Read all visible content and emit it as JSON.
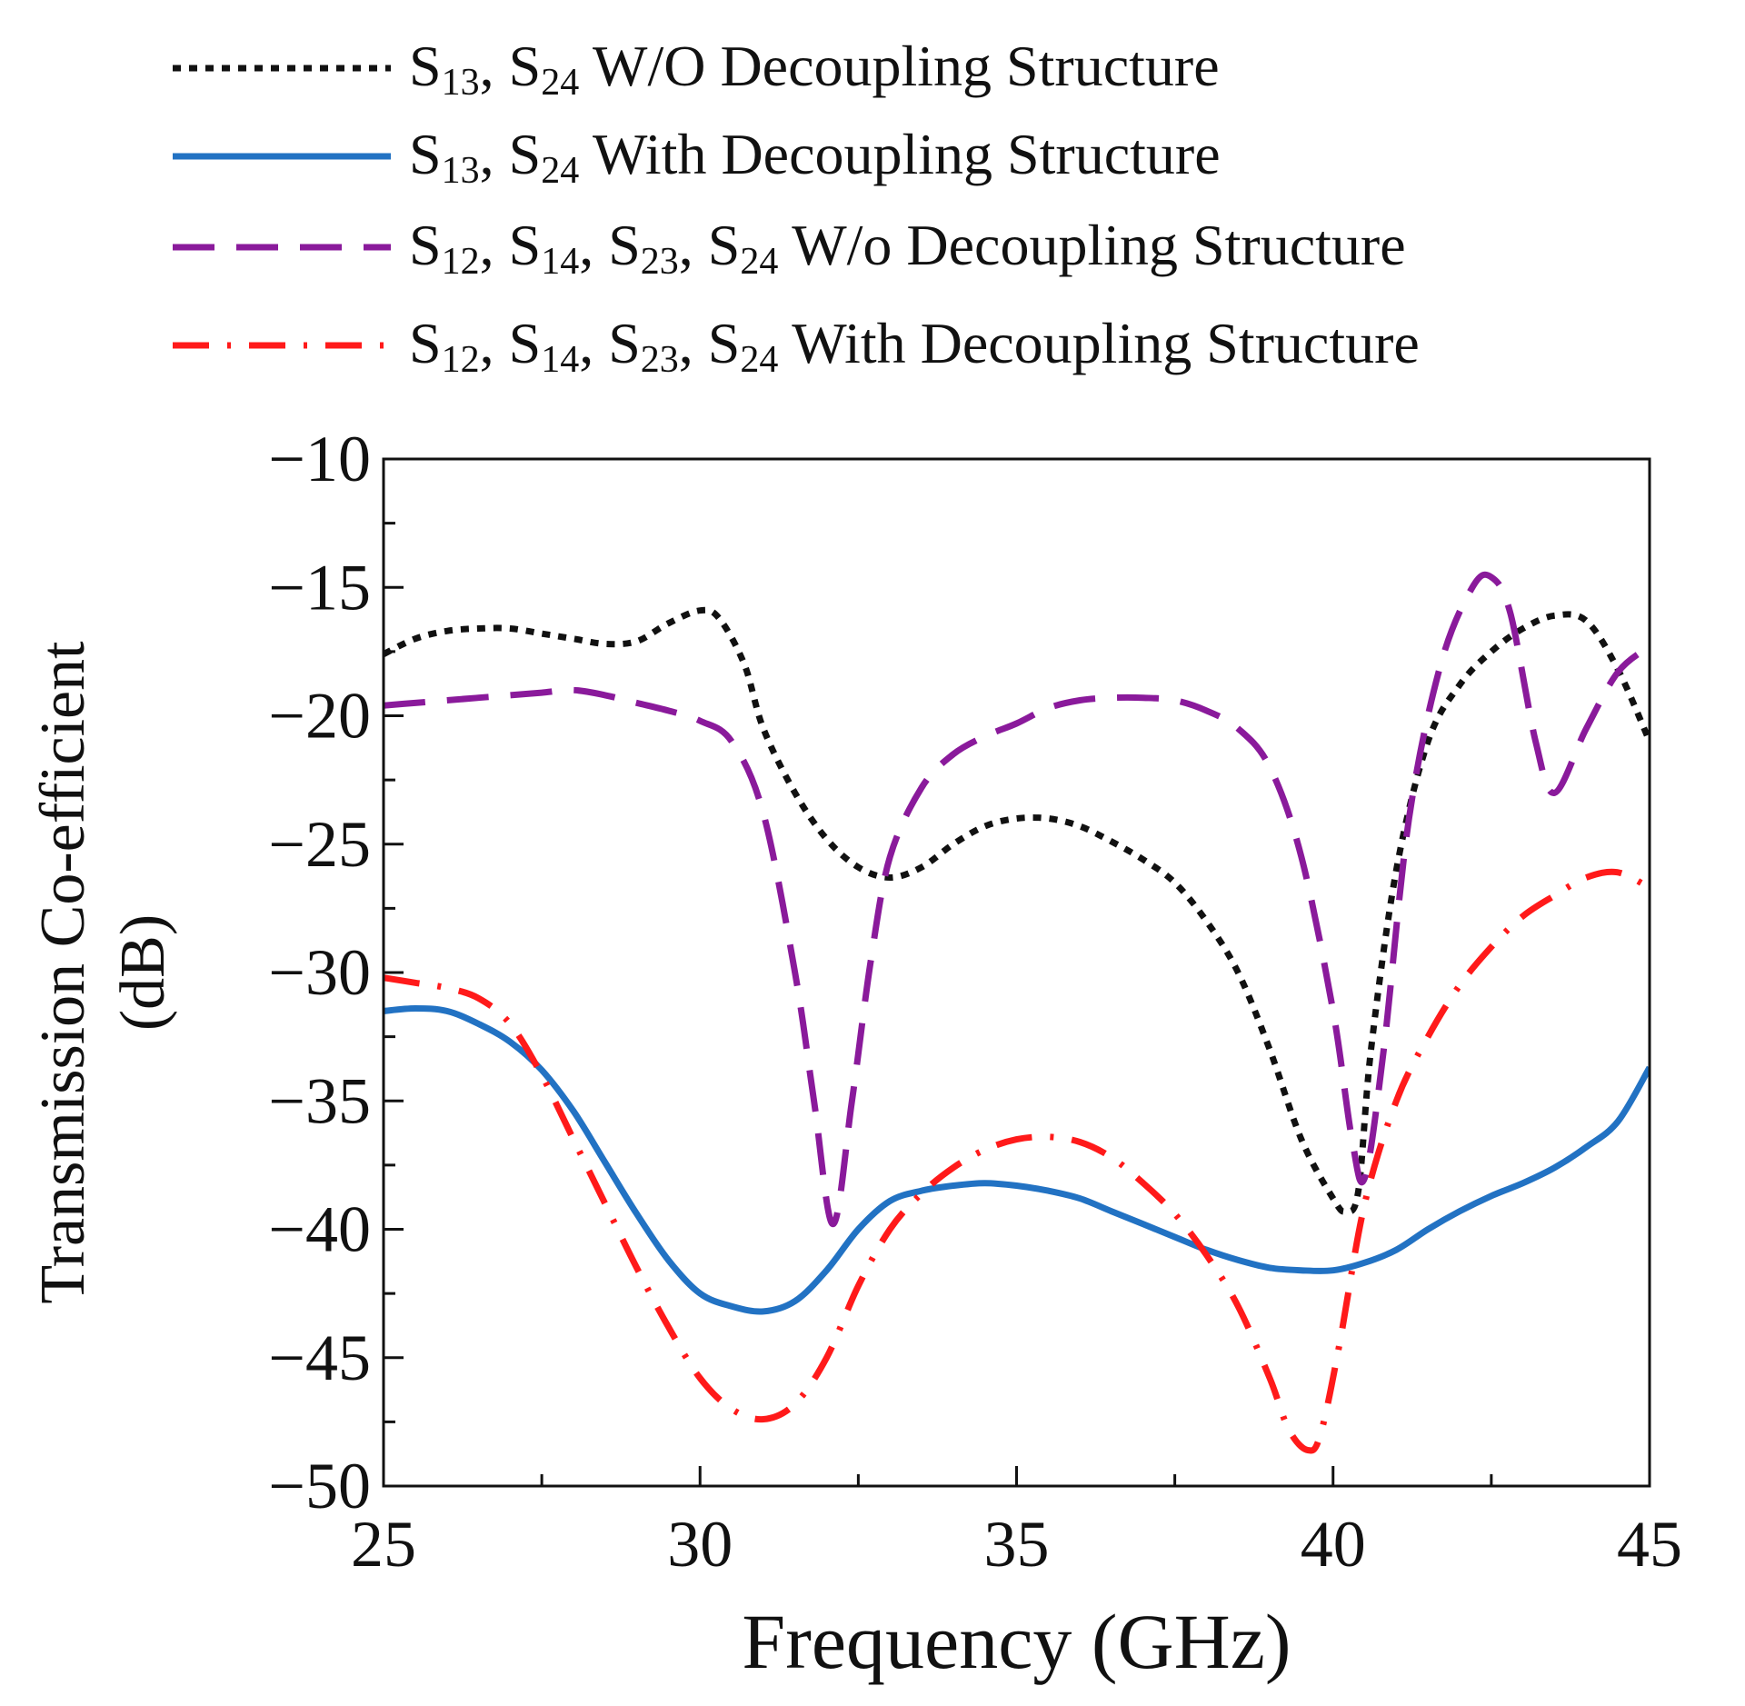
{
  "chart_data": {
    "type": "line",
    "title": "",
    "xlabel": "Frequency (GHz)",
    "ylabel": [
      "Transmission Co-efficient",
      "(dB)"
    ],
    "xlim": [
      25,
      45
    ],
    "ylim": [
      -50,
      -10
    ],
    "xticks": [
      "25",
      "30",
      "35",
      "40",
      "45"
    ],
    "yticks": [
      "−10",
      "−15",
      "−20",
      "−25",
      "−30",
      "−35",
      "−40",
      "−45",
      "−50"
    ],
    "legend_position": "top",
    "series": [
      {
        "name": "S13, S24 W/O Decoupling Structure",
        "legend_parts": [
          [
            "S",
            "13"
          ],
          [
            ", S",
            "24"
          ],
          [
            " W/O Decoupling Structure",
            ""
          ]
        ],
        "color": "#111111",
        "style": "dotted",
        "x": [
          25,
          25.5,
          26,
          26.5,
          27,
          27.5,
          28,
          28.5,
          29,
          29.5,
          30,
          30.3,
          30.7,
          31,
          31.5,
          32,
          32.5,
          33,
          33.5,
          34,
          34.5,
          35,
          35.5,
          36,
          36.5,
          37,
          37.5,
          38,
          38.5,
          39,
          39.5,
          40,
          40.2,
          40.4,
          40.6,
          41,
          41.5,
          42,
          42.5,
          43,
          43.5,
          44,
          44.5,
          45
        ],
        "y": [
          -17.6,
          -17.0,
          -16.7,
          -16.6,
          -16.6,
          -16.8,
          -17.0,
          -17.2,
          -17.1,
          -16.4,
          -15.9,
          -16.2,
          -18.0,
          -20.5,
          -23.0,
          -24.8,
          -25.9,
          -26.3,
          -25.9,
          -25.0,
          -24.3,
          -24.0,
          -24.0,
          -24.3,
          -24.9,
          -25.6,
          -26.5,
          -28.0,
          -30.0,
          -33.0,
          -36.5,
          -38.8,
          -39.3,
          -38.5,
          -33.0,
          -26.0,
          -21.0,
          -18.8,
          -17.5,
          -16.6,
          -16.1,
          -16.3,
          -18.2,
          -21.0
        ]
      },
      {
        "name": "S13, S24 With Decoupling Structure",
        "legend_parts": [
          [
            "S",
            "13"
          ],
          [
            ", S",
            "24"
          ],
          [
            " With Decoupling Structure",
            ""
          ]
        ],
        "color": "#2272c3",
        "style": "solid",
        "x": [
          25,
          25.5,
          26,
          26.5,
          27,
          27.5,
          28,
          28.5,
          29,
          29.5,
          30,
          30.5,
          31,
          31.5,
          32,
          32.5,
          33,
          33.5,
          34,
          34.5,
          35,
          35.5,
          36,
          36.5,
          37,
          37.5,
          38,
          38.5,
          39,
          39.5,
          40,
          40.5,
          41,
          41.5,
          42,
          42.5,
          43,
          43.5,
          44,
          44.5,
          45
        ],
        "y": [
          -31.5,
          -31.4,
          -31.5,
          -32.0,
          -32.7,
          -33.8,
          -35.4,
          -37.4,
          -39.4,
          -41.2,
          -42.5,
          -43.0,
          -43.2,
          -42.8,
          -41.6,
          -40.0,
          -38.9,
          -38.5,
          -38.3,
          -38.2,
          -38.3,
          -38.5,
          -38.8,
          -39.3,
          -39.8,
          -40.3,
          -40.8,
          -41.2,
          -41.5,
          -41.6,
          -41.6,
          -41.3,
          -40.8,
          -40.0,
          -39.3,
          -38.7,
          -38.2,
          -37.6,
          -36.8,
          -35.8,
          -33.7
        ]
      },
      {
        "name": "S12, S14, S23, S24 W/o Decoupling Structure",
        "legend_parts": [
          [
            "S",
            "12"
          ],
          [
            ", S",
            "14"
          ],
          [
            ", S",
            "23"
          ],
          [
            ", S",
            "24"
          ],
          [
            " W/o Decoupling Structure",
            ""
          ]
        ],
        "color": "#8a1a9b",
        "style": "longdash",
        "x": [
          25,
          25.5,
          26,
          26.5,
          27,
          27.5,
          28,
          28.5,
          29,
          29.5,
          30,
          30.5,
          31,
          31.5,
          31.8,
          32.1,
          32.4,
          32.7,
          33,
          33.5,
          34,
          34.5,
          35,
          35.5,
          36,
          36.5,
          37,
          37.5,
          38,
          38.5,
          39,
          39.5,
          40,
          40.3,
          40.5,
          40.8,
          41.2,
          41.7,
          42.2,
          42.5,
          42.8,
          43.2,
          43.5,
          44,
          44.5,
          45
        ],
        "y": [
          -19.6,
          -19.5,
          -19.4,
          -19.3,
          -19.2,
          -19.1,
          -19.0,
          -19.2,
          -19.5,
          -19.8,
          -20.2,
          -21.0,
          -23.8,
          -30.0,
          -35.0,
          -39.8,
          -35.0,
          -29.5,
          -25.5,
          -22.8,
          -21.5,
          -20.8,
          -20.3,
          -19.7,
          -19.4,
          -19.3,
          -19.3,
          -19.4,
          -19.8,
          -20.5,
          -22.0,
          -25.5,
          -31.5,
          -36.5,
          -38.0,
          -33.0,
          -24.0,
          -18.0,
          -15.0,
          -14.6,
          -16.0,
          -21.0,
          -23.0,
          -20.5,
          -18.3,
          -17.3
        ]
      },
      {
        "name": "S12, S14, S23, S24 With Decoupling Structure",
        "legend_parts": [
          [
            "S",
            "12"
          ],
          [
            ", S",
            "14"
          ],
          [
            ", S",
            "23"
          ],
          [
            ", S",
            "24"
          ],
          [
            " With Decoupling Structure",
            ""
          ]
        ],
        "color": "#ff1a1a",
        "style": "dashdot",
        "x": [
          25,
          25.5,
          26,
          26.5,
          27,
          27.5,
          28,
          28.5,
          29,
          29.5,
          30,
          30.5,
          31,
          31.5,
          32,
          32.5,
          33,
          33.5,
          34,
          34.5,
          35,
          35.5,
          36,
          36.5,
          37,
          37.5,
          38,
          38.5,
          39,
          39.3,
          39.6,
          39.8,
          40.1,
          40.5,
          41,
          41.5,
          42,
          42.5,
          43,
          43.5,
          44,
          44.5,
          45
        ],
        "y": [
          -30.2,
          -30.4,
          -30.6,
          -31.0,
          -32.0,
          -34.0,
          -36.5,
          -39.0,
          -41.5,
          -43.8,
          -45.8,
          -47.0,
          -47.4,
          -46.8,
          -45.0,
          -42.2,
          -40.0,
          -38.6,
          -37.6,
          -36.9,
          -36.5,
          -36.4,
          -36.6,
          -37.2,
          -38.2,
          -39.4,
          -41.0,
          -43.0,
          -45.8,
          -47.8,
          -48.6,
          -48.0,
          -44.5,
          -39.0,
          -35.0,
          -32.5,
          -30.5,
          -29.0,
          -27.8,
          -27.0,
          -26.3,
          -26.1,
          -26.7
        ]
      }
    ]
  }
}
